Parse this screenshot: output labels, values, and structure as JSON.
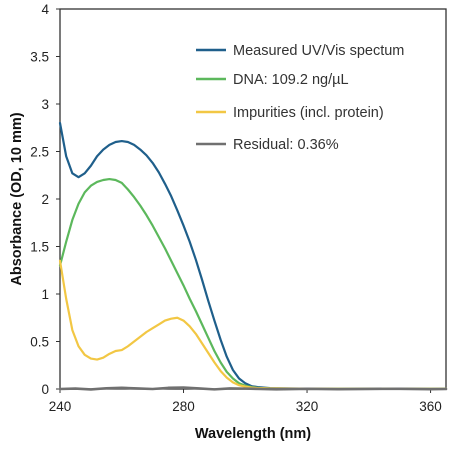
{
  "chart_data": {
    "type": "line",
    "xlabel": "Wavelength (nm)",
    "ylabel": "Absorbance (OD, 10 mm)",
    "xlim": [
      240,
      365
    ],
    "ylim": [
      0,
      4
    ],
    "xticks": [
      240,
      280,
      320,
      360
    ],
    "xtick_labels": [
      "240",
      "280",
      "320",
      "360"
    ],
    "yticks": [
      0,
      0.5,
      1,
      1.5,
      2,
      2.5,
      3,
      3.5,
      4
    ],
    "ytick_labels": [
      "0",
      "0.5",
      "1",
      "1.5",
      "2",
      "2.5",
      "3",
      "3.5",
      "4"
    ],
    "grid": false,
    "legend_position": "top-right",
    "series": [
      {
        "name": "Measured UV/Vis spectum",
        "color": "#1f5f8b",
        "x": [
          240,
          242,
          244,
          246,
          248,
          250,
          252,
          254,
          256,
          258,
          260,
          262,
          264,
          266,
          268,
          270,
          272,
          274,
          276,
          278,
          280,
          282,
          284,
          286,
          288,
          290,
          292,
          294,
          296,
          298,
          300,
          302,
          304,
          306,
          308,
          310,
          315,
          320,
          330,
          340,
          350,
          360,
          365
        ],
        "y": [
          2.8,
          2.45,
          2.27,
          2.23,
          2.27,
          2.35,
          2.45,
          2.52,
          2.57,
          2.6,
          2.61,
          2.6,
          2.57,
          2.52,
          2.46,
          2.38,
          2.28,
          2.16,
          2.03,
          1.88,
          1.72,
          1.55,
          1.36,
          1.15,
          0.93,
          0.72,
          0.52,
          0.34,
          0.2,
          0.11,
          0.06,
          0.03,
          0.02,
          0.015,
          0.01,
          0.008,
          0.005,
          0.003,
          0.002,
          0.002,
          0.002,
          0.002,
          0.002
        ]
      },
      {
        "name": "DNA: 109.2 ng/µL",
        "color": "#5cb85c",
        "x": [
          240,
          242,
          244,
          246,
          248,
          250,
          252,
          254,
          256,
          258,
          260,
          262,
          264,
          266,
          268,
          270,
          272,
          274,
          276,
          278,
          280,
          282,
          284,
          286,
          288,
          290,
          292,
          294,
          296,
          298,
          300,
          302,
          304,
          306,
          308,
          310,
          315,
          320,
          330,
          340,
          350,
          360,
          365
        ],
        "y": [
          1.3,
          1.55,
          1.78,
          1.95,
          2.07,
          2.14,
          2.18,
          2.2,
          2.21,
          2.2,
          2.17,
          2.1,
          2.02,
          1.93,
          1.83,
          1.72,
          1.6,
          1.48,
          1.35,
          1.22,
          1.09,
          0.95,
          0.82,
          0.68,
          0.54,
          0.4,
          0.28,
          0.18,
          0.11,
          0.06,
          0.035,
          0.02,
          0.012,
          0.008,
          0.005,
          0.004,
          0.003,
          0.002,
          0.001,
          0.001,
          0.001,
          0.001,
          0.001
        ]
      },
      {
        "name": "Impurities (incl. protein)",
        "color": "#f2c744",
        "x": [
          240,
          242,
          244,
          246,
          248,
          250,
          252,
          254,
          256,
          258,
          260,
          262,
          264,
          266,
          268,
          270,
          272,
          274,
          276,
          278,
          280,
          282,
          284,
          286,
          288,
          290,
          292,
          294,
          296,
          298,
          300,
          302,
          304,
          306,
          308,
          310,
          315,
          320,
          330,
          340,
          350,
          360,
          365
        ],
        "y": [
          1.35,
          0.95,
          0.62,
          0.45,
          0.36,
          0.32,
          0.31,
          0.33,
          0.37,
          0.4,
          0.41,
          0.45,
          0.5,
          0.55,
          0.6,
          0.64,
          0.68,
          0.72,
          0.74,
          0.75,
          0.72,
          0.66,
          0.58,
          0.48,
          0.38,
          0.28,
          0.19,
          0.12,
          0.07,
          0.04,
          0.025,
          0.015,
          0.01,
          0.008,
          0.006,
          0.005,
          0.004,
          0.003,
          0.002,
          0.002,
          0.002,
          0.002,
          0.002
        ]
      },
      {
        "name": "Residual: 0.36%",
        "color": "#707070",
        "x": [
          240,
          245,
          250,
          255,
          260,
          265,
          270,
          275,
          280,
          285,
          290,
          295,
          300,
          305,
          310,
          320,
          330,
          340,
          350,
          360,
          365
        ],
        "y": [
          0.0,
          0.005,
          -0.005,
          0.008,
          0.012,
          0.006,
          0.0,
          0.012,
          0.015,
          0.006,
          -0.004,
          0.006,
          0.004,
          0.0,
          -0.003,
          0.002,
          -0.002,
          0.001,
          0.002,
          -0.002,
          0.0
        ]
      }
    ]
  }
}
